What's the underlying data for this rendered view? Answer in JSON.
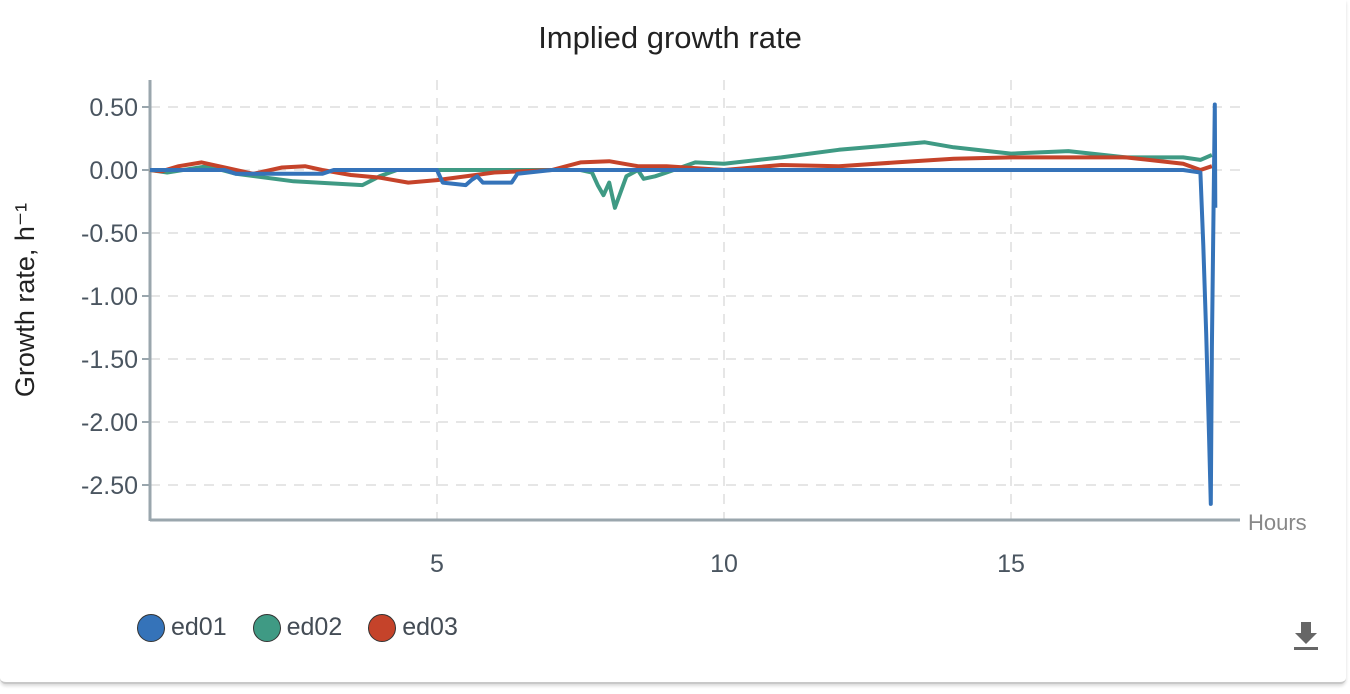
{
  "chart_data": {
    "type": "line",
    "title": "Implied growth rate",
    "xlabel": "Hours",
    "ylabel": "Growth rate, h⁻¹",
    "xlim": [
      0,
      19
    ],
    "ylim": [
      -2.7,
      0.7
    ],
    "xticks": [
      5,
      10,
      15
    ],
    "xtick_labels": [
      "5",
      "10",
      "15"
    ],
    "yticks": [
      0.5,
      0,
      -0.5,
      -1,
      -1.5,
      -2,
      -2.5
    ],
    "ytick_labels": [
      "0.50",
      "0.00",
      "-0.50",
      "-1.00",
      "-1.50",
      "-2.00",
      "-2.50"
    ],
    "grid": true,
    "legend_position": "bottom-left",
    "series": [
      {
        "name": "ed01",
        "color": "#3573b9",
        "x": [
          0,
          1.3,
          1.5,
          3.0,
          3.2,
          5.0,
          5.1,
          5.5,
          5.6,
          5.7,
          5.8,
          6.3,
          6.4,
          7,
          10,
          15,
          18.0,
          18.3,
          18.35,
          18.4,
          18.45,
          18.48,
          18.5,
          18.55,
          18.56
        ],
        "y": [
          0,
          0,
          -0.03,
          -0.03,
          0,
          0,
          -0.1,
          -0.12,
          -0.08,
          -0.05,
          -0.1,
          -0.1,
          -0.03,
          0,
          0,
          0,
          0,
          -0.02,
          -0.6,
          -1.3,
          -2.1,
          -2.65,
          -1.4,
          0.52,
          -0.3
        ]
      },
      {
        "name": "ed02",
        "color": "#3f9a84",
        "x": [
          0,
          0.3,
          1.0,
          1.5,
          2.5,
          3.7,
          4.0,
          4.3,
          5,
          7.5,
          7.7,
          7.8,
          7.9,
          8.0,
          8.1,
          8.3,
          8.5,
          8.6,
          8.8,
          9.0,
          9.5,
          10,
          11,
          12,
          13,
          13.5,
          14,
          15,
          16,
          17,
          18,
          18.3,
          18.5
        ],
        "y": [
          0,
          -0.02,
          0.03,
          -0.03,
          -0.09,
          -0.12,
          -0.05,
          0,
          0,
          0,
          -0.02,
          -0.12,
          -0.2,
          -0.1,
          -0.3,
          -0.05,
          0,
          -0.07,
          -0.05,
          -0.02,
          0.06,
          0.05,
          0.1,
          0.16,
          0.2,
          0.22,
          0.18,
          0.13,
          0.15,
          0.1,
          0.1,
          0.08,
          0.12
        ]
      },
      {
        "name": "ed03",
        "color": "#c5432a",
        "x": [
          0,
          0.2,
          0.5,
          0.9,
          1.3,
          1.8,
          2.3,
          2.7,
          3,
          3.5,
          4,
          4.5,
          5,
          6,
          7,
          7.5,
          8,
          8.5,
          9,
          10,
          11,
          12,
          13,
          14,
          15,
          16,
          17,
          18,
          18.3,
          18.5
        ],
        "y": [
          0,
          -0.01,
          0.03,
          0.06,
          0.02,
          -0.03,
          0.02,
          0.03,
          0,
          -0.04,
          -0.06,
          -0.1,
          -0.08,
          -0.02,
          0,
          0.06,
          0.07,
          0.03,
          0.03,
          0,
          0.04,
          0.03,
          0.06,
          0.09,
          0.1,
          0.1,
          0.1,
          0.05,
          0,
          0.03
        ]
      }
    ]
  },
  "legend": {
    "items": [
      "ed01",
      "ed02",
      "ed03"
    ]
  },
  "icons": {
    "download": "download-icon"
  }
}
